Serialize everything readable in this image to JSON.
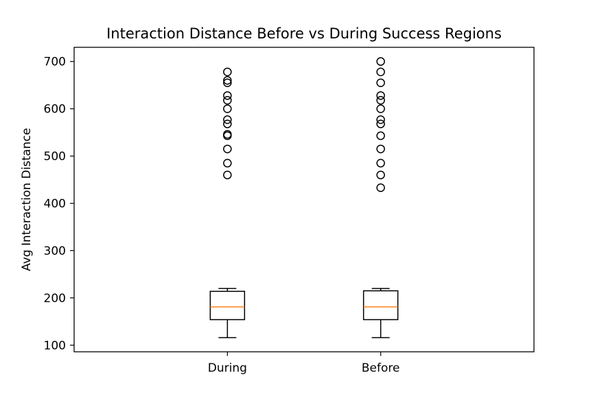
{
  "chart_data": {
    "type": "box",
    "title": "Interaction Distance Before vs During Success Regions",
    "xlabel": "",
    "ylabel": "Avg Interaction Distance",
    "ylim": [
      86,
      730
    ],
    "yticks": [
      100,
      200,
      300,
      400,
      500,
      600,
      700
    ],
    "grid": false,
    "categories": [
      "During",
      "Before"
    ],
    "boxes": [
      {
        "category": "During",
        "whisker_low": 116,
        "q1": 154,
        "median": 181,
        "q3": 214,
        "whisker_high": 220,
        "outliers": [
          460,
          485,
          515,
          543,
          546,
          568,
          577,
          600,
          618,
          628,
          655,
          660,
          678
        ]
      },
      {
        "category": "Before",
        "whisker_low": 116,
        "q1": 154,
        "median": 181,
        "q3": 215,
        "whisker_high": 220,
        "outliers": [
          433,
          460,
          485,
          515,
          543,
          568,
          577,
          600,
          618,
          628,
          655,
          678,
          700
        ]
      }
    ],
    "colors": {
      "box": "#000000",
      "median": "#ff7f0e",
      "outlier": "#000000"
    }
  }
}
